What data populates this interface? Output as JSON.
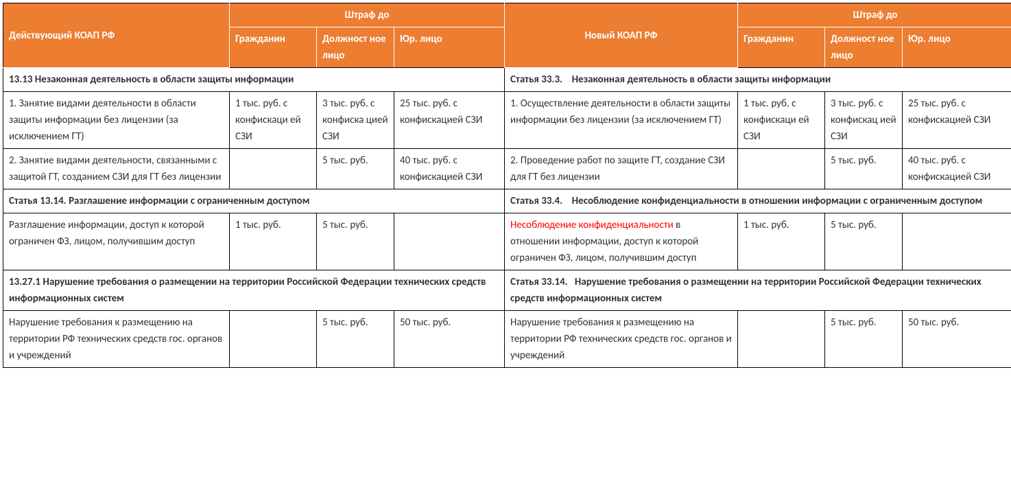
{
  "colors": {
    "header_bg": "#ed7d31",
    "header_text": "#ffffff",
    "border": "#000000",
    "body_text": "#333333",
    "highlight_text": "#ff0000"
  },
  "typography": {
    "font_family": "Calibri, Arial, sans-serif",
    "font_size_pt": 11
  },
  "header": {
    "left_title": "Действующий КОАП РФ",
    "right_title": "Новый КОАП РФ",
    "fine_group": "Штраф до",
    "col_citizen": "Гражданин",
    "col_official": "Должност ное лицо",
    "col_legal": "Юр. лицо"
  },
  "sections": [
    {
      "left_heading": "13.13 Незаконная деятельность в области защиты информации",
      "right_heading": "Статья 33.3.    Незаконная деятельность в области защиты информации",
      "rows": [
        {
          "left_desc": "1.  Занятие видами деятельности в области защиты информации без лицензии (за исключением ГТ)",
          "left_citizen": "1 тыс. руб. с конфискаци ей СЗИ",
          "left_official": "3 тыс. руб. с конфиска цией СЗИ",
          "left_legal": "25 тыс. руб. с конфискацией СЗИ",
          "right_desc": "1.  Осуществление деятельности в области защиты информации без лицензии (за исключением ГТ)",
          "right_citizen": "1 тыс. руб. с конфискаци ей СЗИ",
          "right_official": "3 тыс. руб. с конфискац ией СЗИ",
          "right_legal": "25 тыс. руб. с конфискацией СЗИ"
        },
        {
          "left_desc": "2. Занятие видами деятельности, связанными с защитой ГТ, созданием СЗИ для ГТ без лицензии",
          "left_citizen": "",
          "left_official": "5 тыс. руб.",
          "left_legal": "40 тыс. руб. с конфискацией СЗИ",
          "right_desc": "2. Проведение работ по защите ГТ, создание СЗИ для ГТ без лицензии",
          "right_citizen": "",
          "right_official": "5 тыс. руб.",
          "right_legal": "40 тыс. руб. с конфискацией СЗИ"
        }
      ]
    },
    {
      "left_heading": "Статья 13.14. Разглашение информации с ограниченным доступом",
      "right_heading": "Статья 33.4.    Несоблюдение конфиденциальности в отношении информации с ограниченным доступом",
      "rows": [
        {
          "left_desc": "Разглашение информации, доступ к которой ограничен ФЗ, лицом, получившим доступ",
          "left_citizen": "1 тыс. руб.",
          "left_official": "5 тыс. руб.",
          "left_legal": "",
          "right_desc_highlight": "Несоблюдение конфиденциальности",
          "right_desc_rest": " в отношении информации, доступ к которой ограничен ФЗ, лицом, получившим доступ",
          "right_citizen": "1 тыс. руб.",
          "right_official": "5 тыс. руб.",
          "right_legal": ""
        }
      ]
    },
    {
      "left_heading": "13.27.1 Нарушение требования о размещении на территории Российской Федерации технических средств информационных систем",
      "right_heading": "Статья 33.14.   Нарушение требования о размещении на территории Российской Федерации технических средств информационных систем",
      "rows": [
        {
          "left_desc": "Нарушение требования к размещению на территории РФ технических средств гос. органов и учреждений",
          "left_citizen": "",
          "left_official": "5 тыс. руб.",
          "left_legal": "50 тыс. руб.",
          "right_desc": "Нарушение требования к размещению на территории РФ технических средств гос. органов и учреждений",
          "right_citizen": "",
          "right_official": "5 тыс. руб.",
          "right_legal": "50 тыс. руб."
        }
      ]
    }
  ]
}
